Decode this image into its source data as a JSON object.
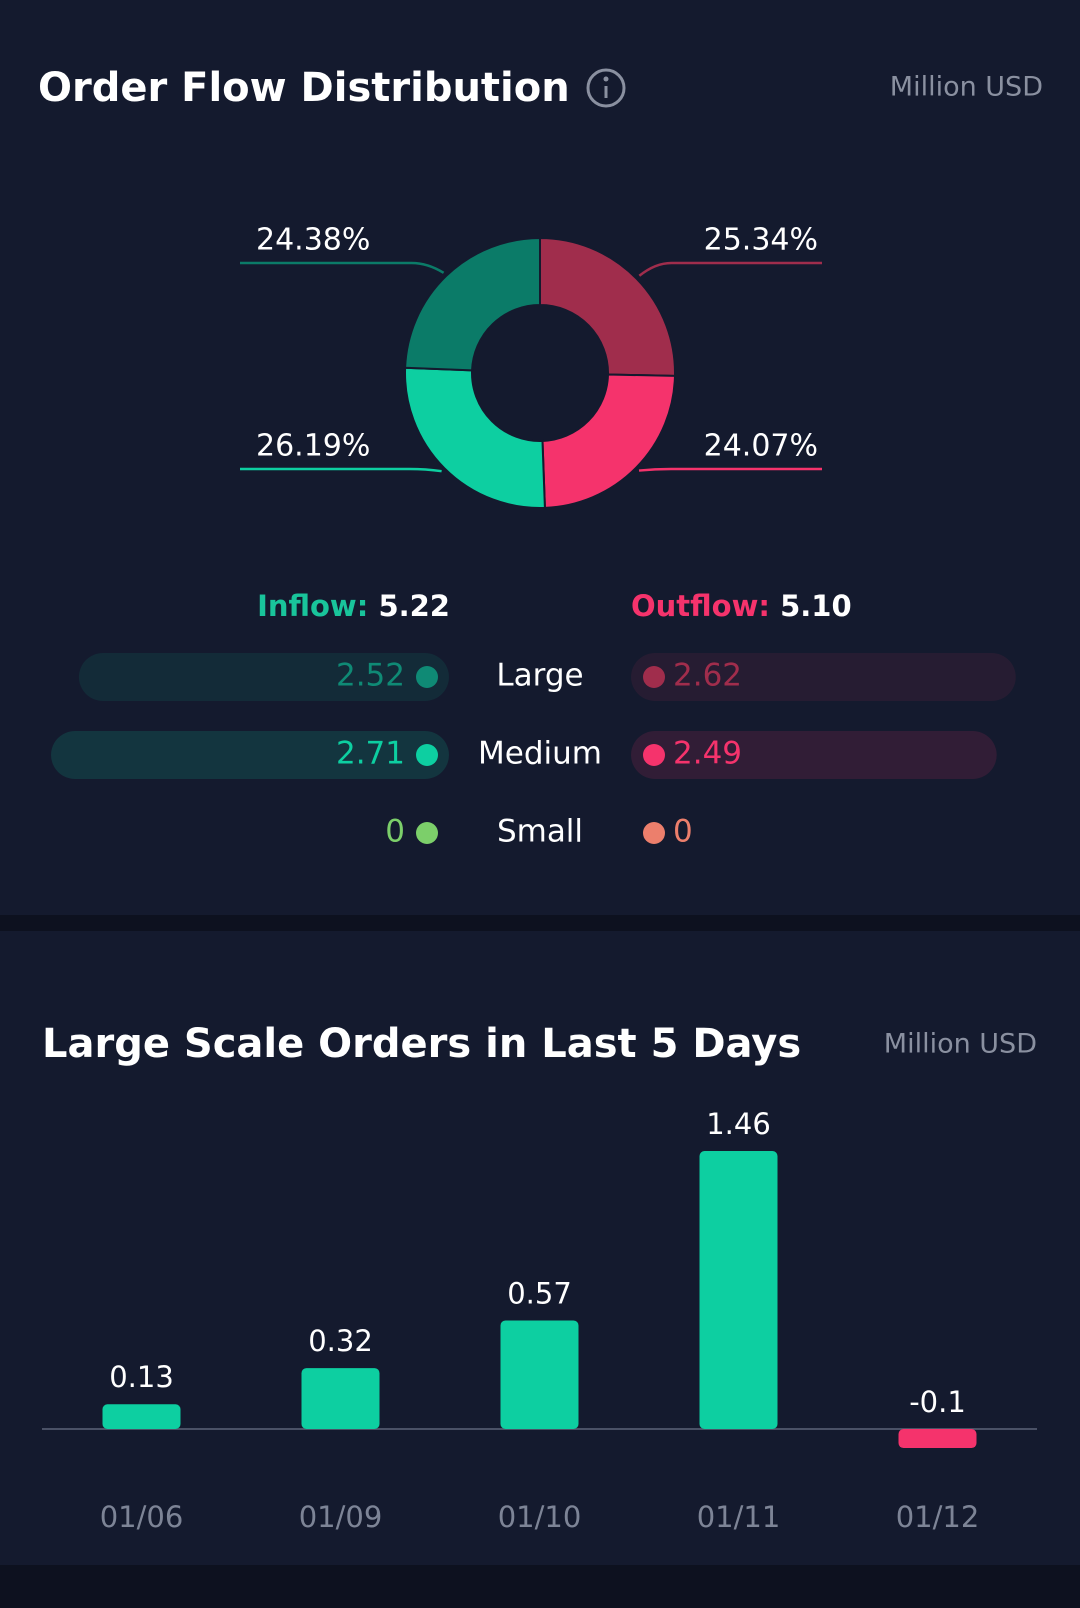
{
  "chart_data": [
    {
      "type": "pie",
      "title": "Order Flow Distribution",
      "unit": "Million USD",
      "values": [
        25.34,
        24.07,
        26.19,
        24.38
      ],
      "value_labels": [
        "25.34%",
        "24.07%",
        "26.19%",
        "24.38%"
      ],
      "colors": [
        "#a02d4c",
        "#f5336c",
        "#0dcfa1",
        "#0b7b68"
      ]
    },
    {
      "type": "bar",
      "title": "Large Scale Orders in Last 5 Days",
      "unit": "Million USD",
      "categories": [
        "01/06",
        "01/09",
        "01/10",
        "01/11",
        "01/12"
      ],
      "values": [
        0.13,
        0.32,
        0.57,
        1.46,
        -0.1
      ],
      "colors": [
        "#0dcfa1",
        "#0dcfa1",
        "#0dcfa1",
        "#0dcfa1",
        "#f5336c"
      ]
    }
  ],
  "flow": {
    "inflow": {
      "label": "Inflow:",
      "value": 5.22,
      "color": "#19c49b"
    },
    "outflow": {
      "label": "Outflow:",
      "value": 5.1,
      "value_label": "5.10",
      "color": "#f5336c"
    },
    "rows": [
      {
        "name": "Large",
        "inflow": 2.52,
        "outflow": 2.62,
        "inflow_color": "#0f8a75",
        "outflow_color": "#a02d4c"
      },
      {
        "name": "Medium",
        "inflow": 2.71,
        "outflow": 2.49,
        "inflow_color": "#0dcfa1",
        "outflow_color": "#f5336c"
      },
      {
        "name": "Small",
        "inflow": 0,
        "outflow": 0,
        "inflow_color": "#7ccf6a",
        "outflow_color": "#ec7f6c"
      }
    ]
  }
}
